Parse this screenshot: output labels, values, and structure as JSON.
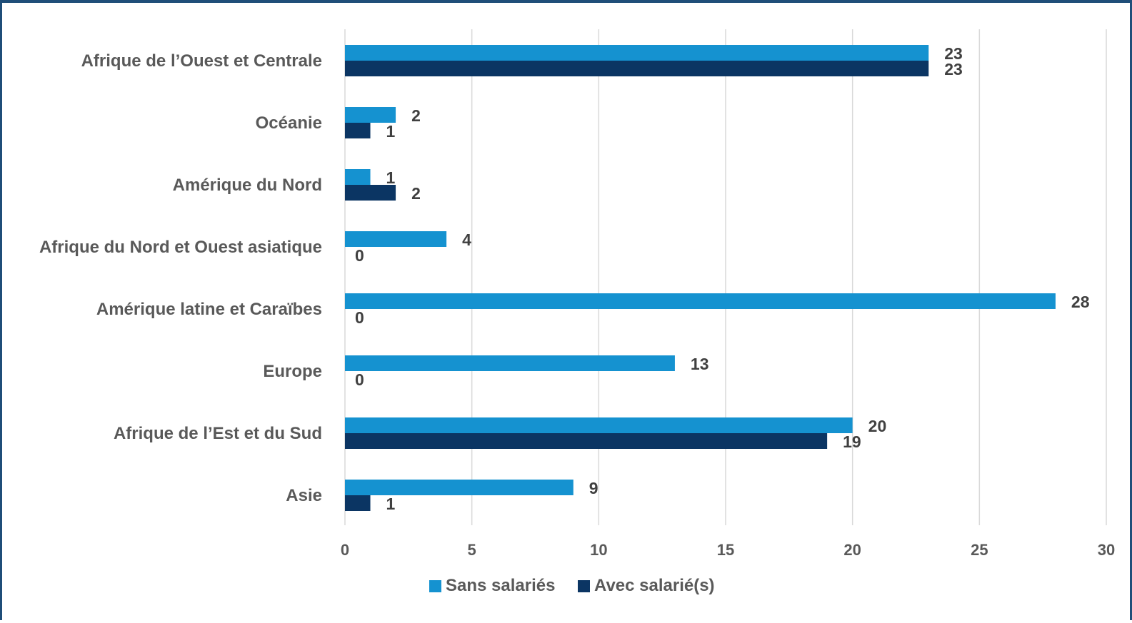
{
  "chart_data": {
    "type": "bar",
    "orientation": "horizontal",
    "categories": [
      "Afrique de l’Ouest et Centrale",
      "Océanie",
      "Amérique du Nord",
      "Afrique du Nord et Ouest asiatique",
      "Amérique latine et Caraïbes",
      "Europe",
      "Afrique de l’Est et du Sud",
      "Asie"
    ],
    "series": [
      {
        "name": "Sans salariés",
        "color": "#1592d0",
        "values": [
          23,
          2,
          1,
          4,
          28,
          13,
          20,
          9
        ]
      },
      {
        "name": "Avec salarié(s)",
        "color": "#0b3563",
        "values": [
          23,
          1,
          2,
          0,
          0,
          0,
          19,
          1
        ]
      }
    ],
    "xlim": [
      0,
      30
    ],
    "xticks": [
      0,
      5,
      10,
      15,
      20,
      25,
      30
    ],
    "grid": true,
    "data_labels": true,
    "legend_position": "bottom"
  }
}
